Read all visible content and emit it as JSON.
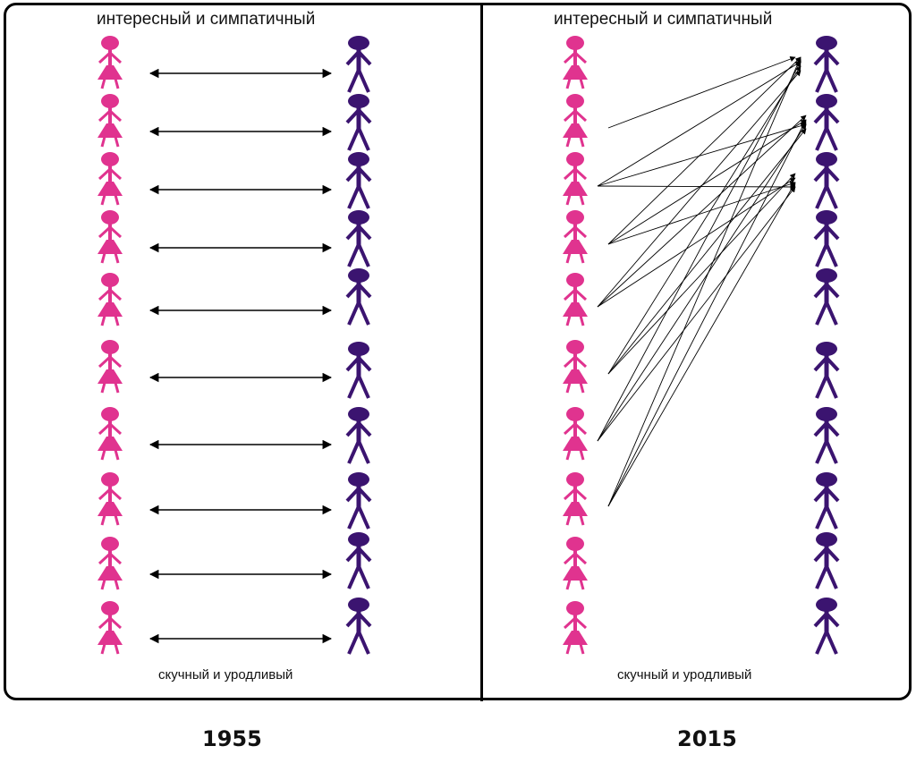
{
  "panels": [
    {
      "top_label": "интересный и симпатичный",
      "bottom_label": "скучный и уродливый",
      "year": "1955",
      "links": [
        [
          0,
          0
        ],
        [
          1,
          1
        ],
        [
          2,
          2
        ],
        [
          3,
          3
        ],
        [
          4,
          4
        ],
        [
          5,
          5
        ],
        [
          6,
          6
        ],
        [
          7,
          7
        ],
        [
          8,
          8
        ],
        [
          9,
          9
        ]
      ],
      "link_style": "double-arrow"
    },
    {
      "top_label": "интересный и симпатичный",
      "bottom_label": "скучный и уродливый",
      "year": "2015",
      "links": [
        [
          1,
          0
        ],
        [
          2,
          0
        ],
        [
          2,
          1
        ],
        [
          2,
          2
        ],
        [
          3,
          0
        ],
        [
          3,
          1
        ],
        [
          3,
          2
        ],
        [
          4,
          0
        ],
        [
          4,
          1
        ],
        [
          4,
          2
        ],
        [
          5,
          0
        ],
        [
          5,
          1
        ],
        [
          5,
          2
        ],
        [
          6,
          0
        ],
        [
          6,
          1
        ],
        [
          6,
          2
        ],
        [
          7,
          0
        ],
        [
          7,
          1
        ],
        [
          7,
          2
        ]
      ],
      "link_style": "single-arrow"
    }
  ],
  "figures_per_column": 10,
  "colors": {
    "female": "#e0338f",
    "male": "#3b1470",
    "line": "#000000",
    "border": "#000000"
  }
}
